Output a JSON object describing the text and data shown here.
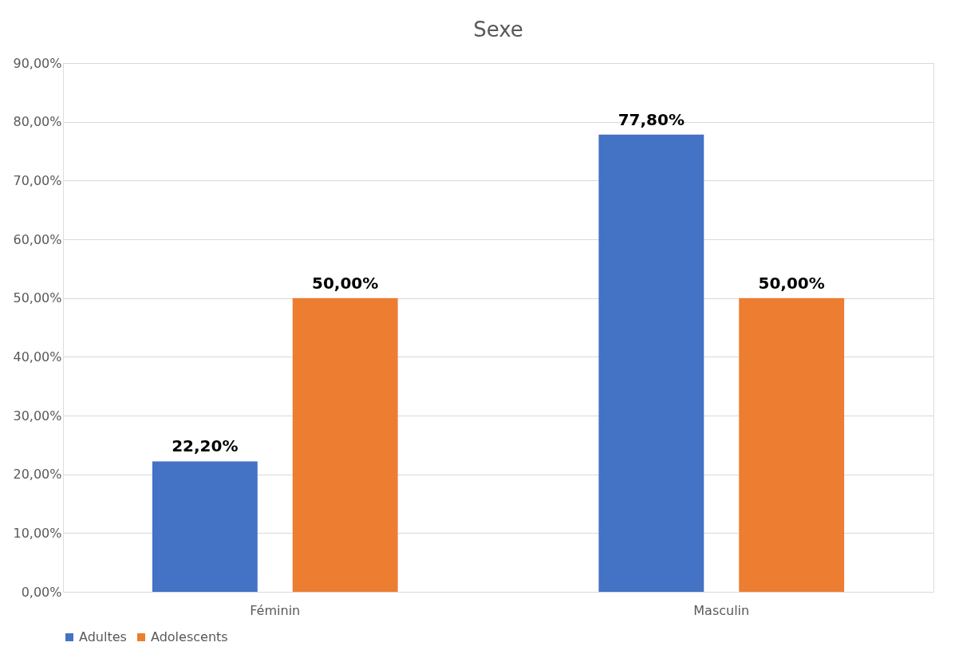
{
  "chart_data": {
    "type": "bar",
    "title": "Sexe",
    "categories": [
      "Féminin",
      "Masculin"
    ],
    "series": [
      {
        "name": "Adultes",
        "color": "#4472c4",
        "values": [
          22.2,
          77.8
        ],
        "value_labels": [
          "22,20%",
          "77,80%"
        ]
      },
      {
        "name": "Adolescents",
        "color": "#ed7d31",
        "values": [
          50,
          50
        ],
        "value_labels": [
          "50,00%",
          "50,00%"
        ]
      }
    ],
    "ylim": [
      0,
      90
    ],
    "yticks": [
      {
        "value": 0,
        "label": "0,00%"
      },
      {
        "value": 10,
        "label": "10,00%"
      },
      {
        "value": 20,
        "label": "20,00%"
      },
      {
        "value": 30,
        "label": "30,00%"
      },
      {
        "value": 40,
        "label": "40,00%"
      },
      {
        "value": 50,
        "label": "50,00%"
      },
      {
        "value": 60,
        "label": "60,00%"
      },
      {
        "value": 70,
        "label": "70,00%"
      },
      {
        "value": 80,
        "label": "80,00%"
      },
      {
        "value": 90,
        "label": "90,00%"
      }
    ],
    "grid": "y",
    "legend": "bottom"
  }
}
